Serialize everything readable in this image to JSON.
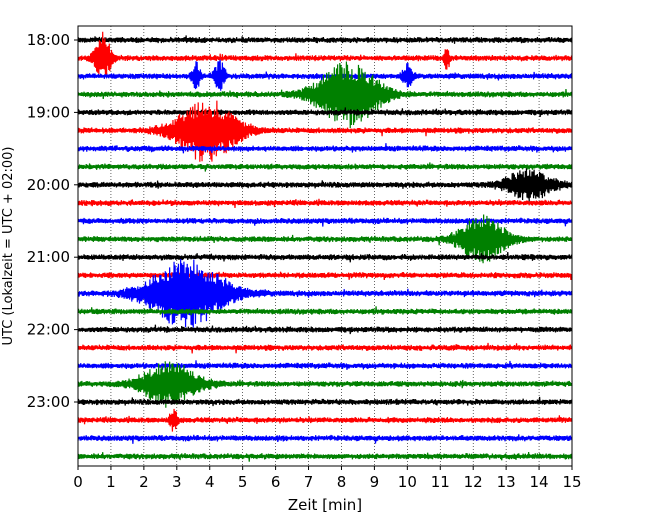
{
  "chart_data": {
    "type": "line",
    "subtype": "helicorder-seismogram",
    "xlabel": "Zeit  [min]",
    "ylabel": "UTC (Lokalzeit = UTC + 02:00)",
    "xlim": [
      0,
      15
    ],
    "x_ticks": [
      0,
      1,
      2,
      3,
      4,
      5,
      6,
      7,
      8,
      9,
      10,
      11,
      12,
      13,
      14,
      15
    ],
    "x_tick_labels": [
      "0",
      "1",
      "2",
      "3",
      "4",
      "5",
      "6",
      "7",
      "8",
      "9",
      "10",
      "11",
      "12",
      "13",
      "14",
      "15"
    ],
    "y_tick_labels": [
      "18:00",
      "19:00",
      "20:00",
      "21:00",
      "22:00",
      "23:00"
    ],
    "y_tick_rows": [
      0,
      4,
      8,
      12,
      16,
      20
    ],
    "grid": "vertical dotted",
    "trace_interval_min": 15,
    "start_time": "18:00",
    "end_time": "24:00",
    "color_cycle": [
      "#000000",
      "#ff0000",
      "#0000ff",
      "#008000"
    ],
    "series": [
      {
        "row": 0,
        "color": "#000000",
        "events": []
      },
      {
        "row": 1,
        "color": "#ff0000",
        "events": [
          {
            "t": 0.75,
            "amp": 1.7,
            "dur": 0.6
          },
          {
            "t": 11.2,
            "amp": 0.8,
            "dur": 0.2
          }
        ]
      },
      {
        "row": 2,
        "color": "#0000ff",
        "events": [
          {
            "t": 3.6,
            "amp": 1.0,
            "dur": 0.3
          },
          {
            "t": 4.3,
            "amp": 1.0,
            "dur": 0.4
          },
          {
            "t": 10.0,
            "amp": 0.8,
            "dur": 0.4
          }
        ]
      },
      {
        "row": 3,
        "color": "#008000",
        "events": [
          {
            "t": 8.2,
            "amp": 2.2,
            "dur": 2.4
          }
        ]
      },
      {
        "row": 4,
        "color": "#000000",
        "events": []
      },
      {
        "row": 5,
        "color": "#ff0000",
        "events": [
          {
            "t": 3.9,
            "amp": 2.1,
            "dur": 2.4
          }
        ]
      },
      {
        "row": 6,
        "color": "#0000ff",
        "events": []
      },
      {
        "row": 7,
        "color": "#008000",
        "events": []
      },
      {
        "row": 8,
        "color": "#000000",
        "events": [
          {
            "t": 13.7,
            "amp": 1.0,
            "dur": 1.8
          }
        ]
      },
      {
        "row": 9,
        "color": "#ff0000",
        "events": []
      },
      {
        "row": 10,
        "color": "#0000ff",
        "events": []
      },
      {
        "row": 11,
        "color": "#008000",
        "events": [
          {
            "t": 12.3,
            "amp": 1.6,
            "dur": 1.8
          }
        ]
      },
      {
        "row": 12,
        "color": "#000000",
        "events": []
      },
      {
        "row": 13,
        "color": "#ff0000",
        "events": []
      },
      {
        "row": 14,
        "color": "#0000ff",
        "events": [
          {
            "t": 3.3,
            "amp": 2.3,
            "dur": 3.0
          }
        ]
      },
      {
        "row": 15,
        "color": "#008000",
        "events": []
      },
      {
        "row": 16,
        "color": "#000000",
        "events": []
      },
      {
        "row": 17,
        "color": "#ff0000",
        "events": []
      },
      {
        "row": 18,
        "color": "#0000ff",
        "events": []
      },
      {
        "row": 19,
        "color": "#008000",
        "events": [
          {
            "t": 2.8,
            "amp": 1.5,
            "dur": 2.2
          }
        ]
      },
      {
        "row": 20,
        "color": "#000000",
        "events": []
      },
      {
        "row": 21,
        "color": "#ff0000",
        "events": [
          {
            "t": 2.9,
            "amp": 0.7,
            "dur": 0.3
          }
        ]
      },
      {
        "row": 22,
        "color": "#0000ff",
        "events": []
      },
      {
        "row": 23,
        "color": "#008000",
        "events": []
      }
    ]
  }
}
